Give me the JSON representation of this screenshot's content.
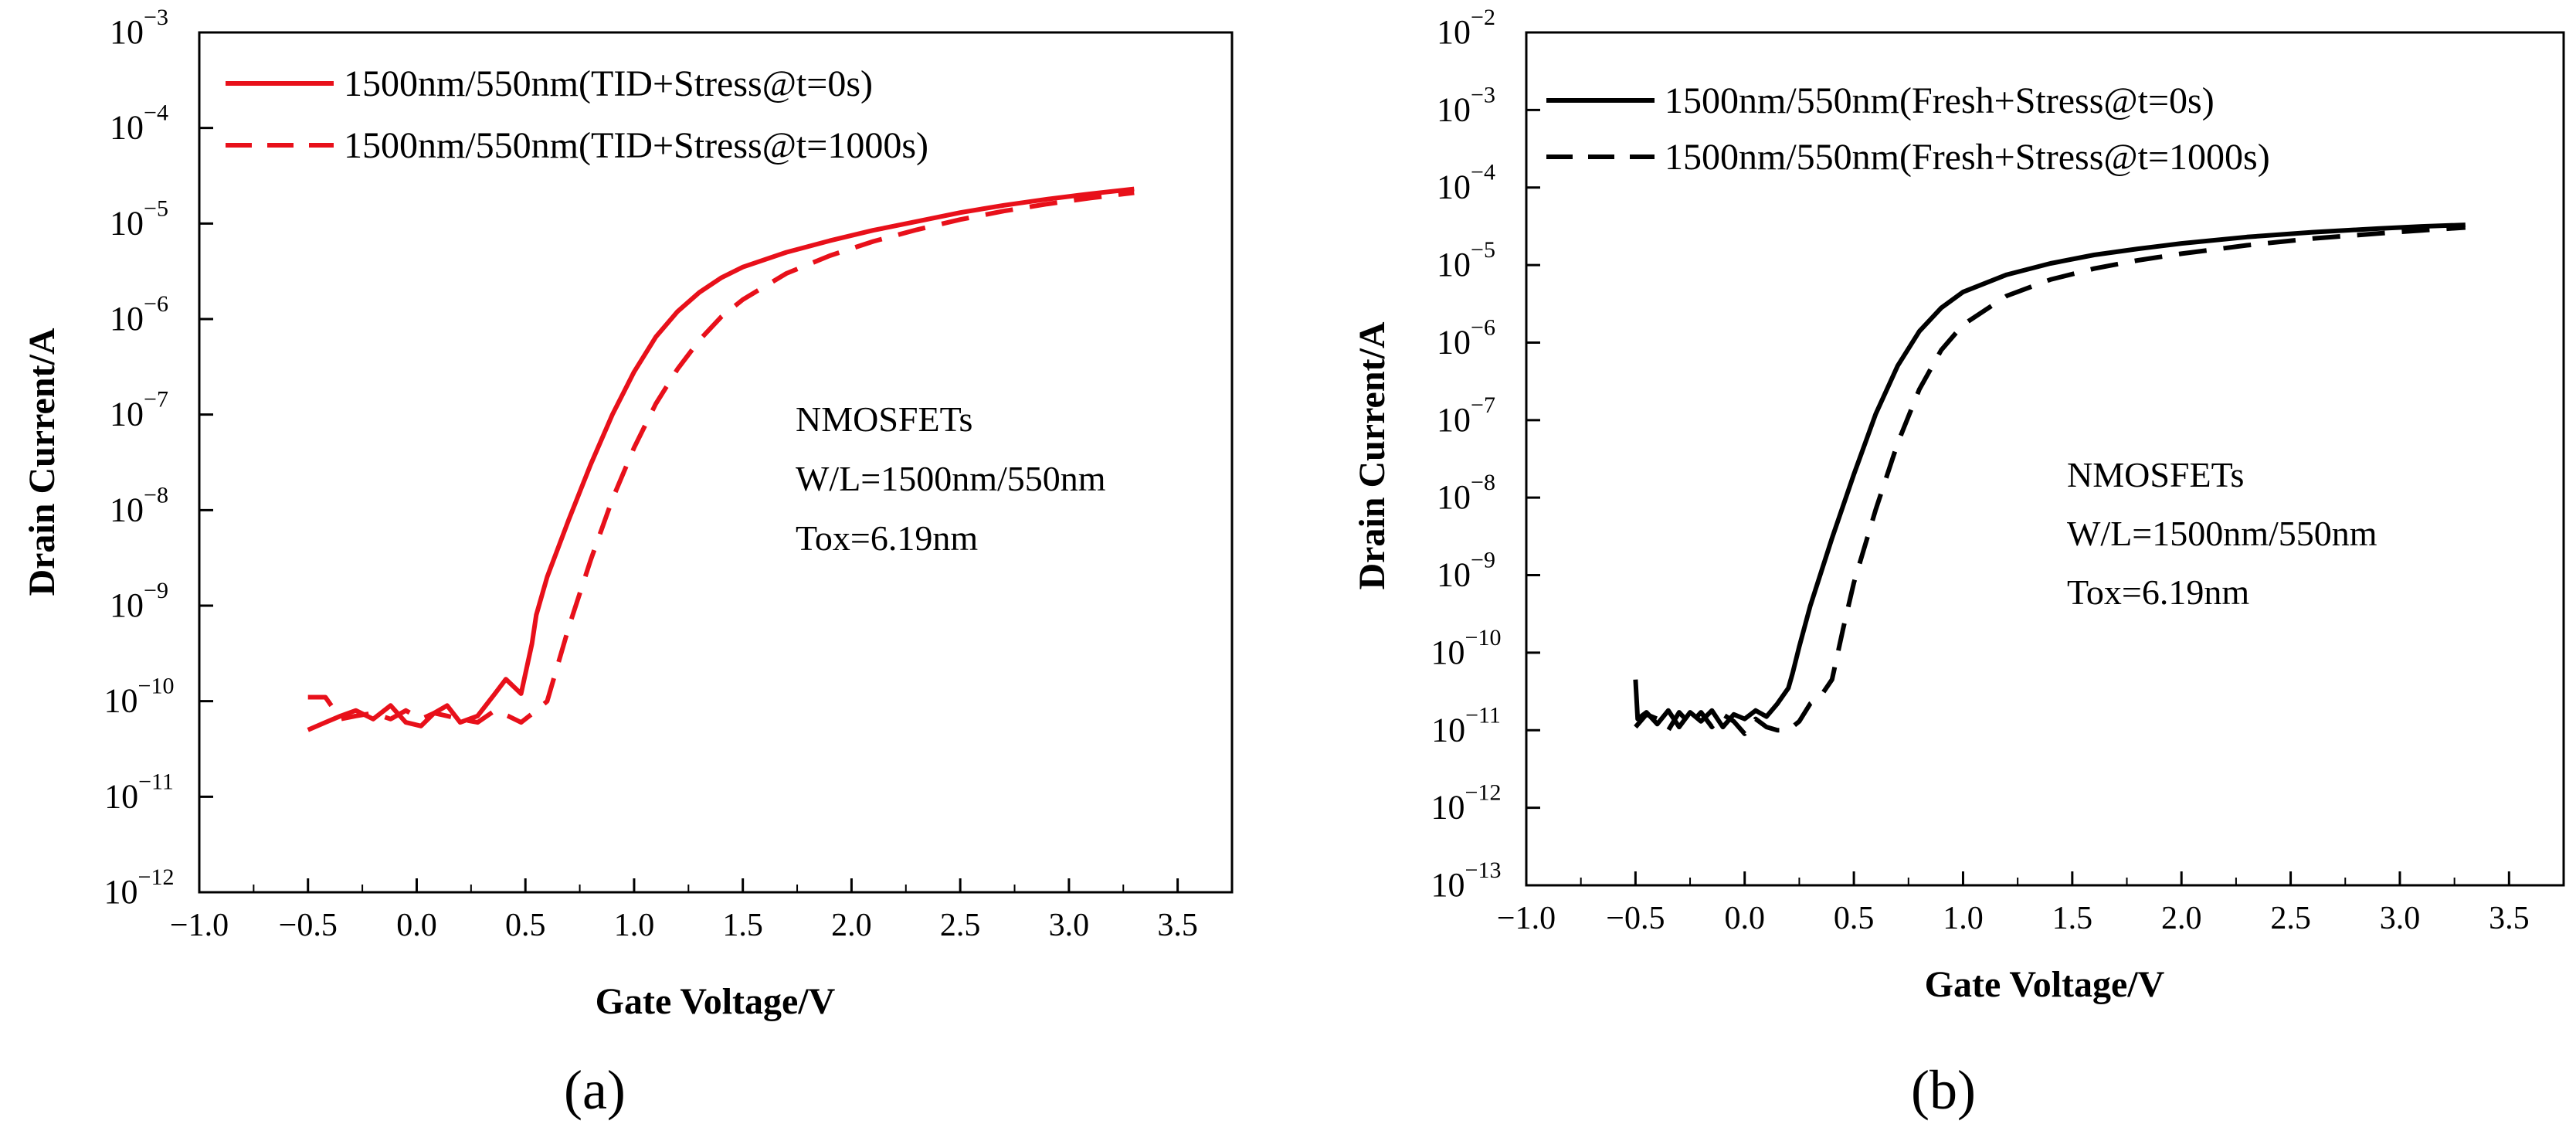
{
  "chart_data": [
    {
      "panel_label": "(a)",
      "type": "line",
      "yscale": "log",
      "xlabel": "Gate Voltage/V",
      "ylabel": "Drain Current/A",
      "xlim": [
        -1.0,
        3.75
      ],
      "ylim_exp": [
        -12,
        -3
      ],
      "xticks": [
        -1.0,
        -0.5,
        0.0,
        0.5,
        1.0,
        1.5,
        2.0,
        2.5,
        3.0,
        3.5
      ],
      "xtick_labels": [
        "−1.0",
        "−0.5",
        "0.0",
        "0.5",
        "1.0",
        "1.5",
        "2.0",
        "2.5",
        "3.0",
        "3.5"
      ],
      "ytick_exponents": [
        "-12",
        "-11",
        "-10",
        "-9",
        "-8",
        "-7",
        "-6",
        "-5",
        "-4",
        "-3"
      ],
      "legend_location": "top-left",
      "annotation_lines": [
        "NMOSFETs",
        "W/L=1500nm/550nm",
        "Tox=6.19nm"
      ],
      "series": [
        {
          "name": "1500nm/550nm(TID+Stress@t=0s)",
          "color": "#e8101a",
          "style": "solid",
          "points": [
            [
              -0.5,
              5e-11
            ],
            [
              -0.42,
              6e-11
            ],
            [
              -0.35,
              7e-11
            ],
            [
              -0.28,
              8e-11
            ],
            [
              -0.2,
              6.5e-11
            ],
            [
              -0.12,
              9e-11
            ],
            [
              -0.05,
              6e-11
            ],
            [
              0.02,
              5.5e-11
            ],
            [
              0.08,
              7.5e-11
            ],
            [
              0.14,
              9e-11
            ],
            [
              0.2,
              6e-11
            ],
            [
              0.28,
              7e-11
            ],
            [
              0.36,
              1.2e-10
            ],
            [
              0.41,
              1.7e-10
            ],
            [
              0.48,
              1.2e-10
            ],
            [
              0.53,
              4e-10
            ],
            [
              0.55,
              8e-10
            ],
            [
              0.6,
              2e-09
            ],
            [
              0.7,
              8e-09
            ],
            [
              0.8,
              3e-08
            ],
            [
              0.9,
              1e-07
            ],
            [
              1.0,
              2.8e-07
            ],
            [
              1.1,
              6.5e-07
            ],
            [
              1.2,
              1.2e-06
            ],
            [
              1.3,
              1.9e-06
            ],
            [
              1.4,
              2.7e-06
            ],
            [
              1.5,
              3.5e-06
            ],
            [
              1.7,
              5e-06
            ],
            [
              1.9,
              6.6e-06
            ],
            [
              2.1,
              8.5e-06
            ],
            [
              2.3,
              1.05e-05
            ],
            [
              2.5,
              1.3e-05
            ],
            [
              2.7,
              1.55e-05
            ],
            [
              2.9,
              1.8e-05
            ],
            [
              3.1,
              2.05e-05
            ],
            [
              3.3,
              2.3e-05
            ]
          ]
        },
        {
          "name": "1500nm/550nm(TID+Stress@t=1000s)",
          "color": "#e8101a",
          "style": "dashed",
          "points": [
            [
              -0.5,
              1.1e-10
            ],
            [
              -0.42,
              1.1e-10
            ],
            [
              -0.35,
              6.5e-11
            ],
            [
              -0.28,
              7e-11
            ],
            [
              -0.2,
              7.5e-11
            ],
            [
              -0.12,
              6.5e-11
            ],
            [
              -0.05,
              8e-11
            ],
            [
              0.02,
              6.5e-11
            ],
            [
              0.08,
              7.5e-11
            ],
            [
              0.14,
              7e-11
            ],
            [
              0.2,
              6.5e-11
            ],
            [
              0.28,
              6e-11
            ],
            [
              0.36,
              8e-11
            ],
            [
              0.42,
              7e-11
            ],
            [
              0.48,
              6e-11
            ],
            [
              0.55,
              8e-11
            ],
            [
              0.6,
              1e-10
            ],
            [
              0.7,
              6e-10
            ],
            [
              0.8,
              3e-09
            ],
            [
              0.9,
              1.3e-08
            ],
            [
              1.0,
              4.5e-08
            ],
            [
              1.1,
              1.3e-07
            ],
            [
              1.2,
              3e-07
            ],
            [
              1.3,
              6e-07
            ],
            [
              1.4,
              1.05e-06
            ],
            [
              1.5,
              1.6e-06
            ],
            [
              1.7,
              3e-06
            ],
            [
              1.9,
              4.6e-06
            ],
            [
              2.1,
              6.5e-06
            ],
            [
              2.3,
              8.6e-06
            ],
            [
              2.5,
              1.1e-05
            ],
            [
              2.7,
              1.35e-05
            ],
            [
              2.9,
              1.6e-05
            ],
            [
              3.1,
              1.85e-05
            ],
            [
              3.3,
              2.1e-05
            ]
          ]
        }
      ]
    },
    {
      "panel_label": "(b)",
      "type": "line",
      "yscale": "log",
      "xlabel": "Gate Voltage/V",
      "ylabel": "Drain Current/A",
      "xlim": [
        -1.0,
        3.75
      ],
      "ylim_exp": [
        -13,
        -2
      ],
      "xticks": [
        -1.0,
        -0.5,
        0.0,
        0.5,
        1.0,
        1.5,
        2.0,
        2.5,
        3.0,
        3.5
      ],
      "xtick_labels": [
        "−1.0",
        "−0.5",
        "0.0",
        "0.5",
        "1.0",
        "1.5",
        "2.0",
        "2.5",
        "3.0",
        "3.5"
      ],
      "ytick_exponents": [
        "-13",
        "-12",
        "-11",
        "-10",
        "-9",
        "-8",
        "-7",
        "-6",
        "-5",
        "-4",
        "-3",
        "-2"
      ],
      "legend_location": "top-left",
      "annotation_lines": [
        "NMOSFETs",
        "W/L=1500nm/550nm",
        "Tox=6.19nm"
      ],
      "series": [
        {
          "name": "1500nm/550nm(Fresh+Stress@t=0s)",
          "color": "#000000",
          "style": "solid",
          "points": [
            [
              -0.5,
              4.5e-11
            ],
            [
              -0.49,
              1.4e-11
            ],
            [
              -0.45,
              1.7e-11
            ],
            [
              -0.4,
              1.2e-11
            ],
            [
              -0.35,
              1.8e-11
            ],
            [
              -0.3,
              1.1e-11
            ],
            [
              -0.25,
              1.7e-11
            ],
            [
              -0.2,
              1.3e-11
            ],
            [
              -0.15,
              1.8e-11
            ],
            [
              -0.1,
              1.1e-11
            ],
            [
              -0.05,
              1.6e-11
            ],
            [
              0.0,
              1.4e-11
            ],
            [
              0.05,
              1.8e-11
            ],
            [
              0.1,
              1.5e-11
            ],
            [
              0.15,
              2.2e-11
            ],
            [
              0.2,
              3.5e-11
            ],
            [
              0.22,
              5.5e-11
            ],
            [
              0.25,
              1.2e-10
            ],
            [
              0.3,
              4e-10
            ],
            [
              0.4,
              3e-09
            ],
            [
              0.5,
              2e-08
            ],
            [
              0.6,
              1.2e-07
            ],
            [
              0.7,
              5e-07
            ],
            [
              0.8,
              1.4e-06
            ],
            [
              0.9,
              2.8e-06
            ],
            [
              1.0,
              4.5e-06
            ],
            [
              1.2,
              7.5e-06
            ],
            [
              1.4,
              1.05e-05
            ],
            [
              1.6,
              1.35e-05
            ],
            [
              1.8,
              1.62e-05
            ],
            [
              2.0,
              1.9e-05
            ],
            [
              2.3,
              2.3e-05
            ],
            [
              2.6,
              2.65e-05
            ],
            [
              2.9,
              2.95e-05
            ],
            [
              3.1,
              3.15e-05
            ],
            [
              3.3,
              3.3e-05
            ]
          ]
        },
        {
          "name": "1500nm/550nm(Fresh+Stress@t=1000s)",
          "color": "#000000",
          "style": "dashed",
          "points": [
            [
              -0.5,
              1.1e-11
            ],
            [
              -0.45,
              1.6e-11
            ],
            [
              -0.4,
              1.4e-11
            ],
            [
              -0.35,
              1e-11
            ],
            [
              -0.3,
              1.7e-11
            ],
            [
              -0.25,
              1.2e-11
            ],
            [
              -0.2,
              1.7e-11
            ],
            [
              -0.15,
              1.1e-11
            ],
            [
              -0.1,
              1.6e-11
            ],
            [
              -0.05,
              1.3e-11
            ],
            [
              0.0,
              9e-12
            ],
            [
              0.05,
              1.4e-11
            ],
            [
              0.1,
              1.1e-11
            ],
            [
              0.15,
              1e-11
            ],
            [
              0.2,
              1e-11
            ],
            [
              0.25,
              1.3e-11
            ],
            [
              0.3,
              2.2e-11
            ],
            [
              0.35,
              2.8e-11
            ],
            [
              0.4,
              4.5e-11
            ],
            [
              0.45,
              2e-10
            ],
            [
              0.5,
              8e-10
            ],
            [
              0.6,
              7e-09
            ],
            [
              0.7,
              5e-08
            ],
            [
              0.8,
              2.5e-07
            ],
            [
              0.9,
              8e-07
            ],
            [
              1.0,
              1.7e-06
            ],
            [
              1.2,
              4e-06
            ],
            [
              1.4,
              6.5e-06
            ],
            [
              1.6,
              9e-06
            ],
            [
              1.8,
              1.15e-05
            ],
            [
              2.0,
              1.4e-05
            ],
            [
              2.3,
              1.8e-05
            ],
            [
              2.6,
              2.2e-05
            ],
            [
              2.9,
              2.55e-05
            ],
            [
              3.1,
              2.8e-05
            ],
            [
              3.3,
              3.05e-05
            ]
          ]
        }
      ]
    }
  ]
}
